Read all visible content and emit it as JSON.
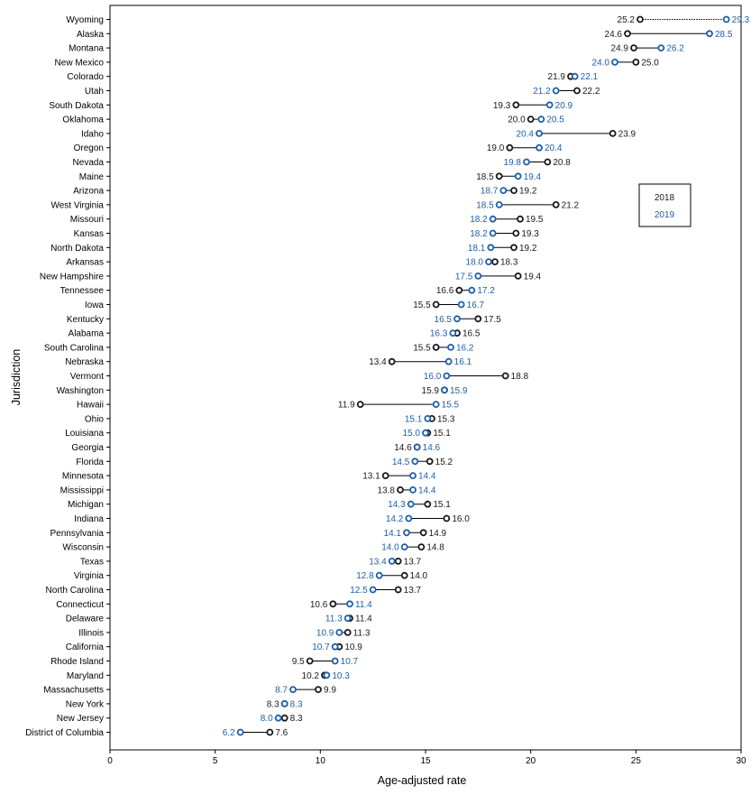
{
  "chart_data": {
    "type": "dumbbell",
    "xlabel": "Age-adjusted rate",
    "ylabel": "Jurisdiction",
    "xlim": [
      0,
      30
    ],
    "xticks": [
      0,
      5,
      10,
      15,
      20,
      25,
      30
    ],
    "grid": false,
    "legend_position": "right",
    "colors": {
      "2018": "#1a1a1a",
      "2019": "#1f5fa8"
    },
    "series": [
      {
        "name": "2018",
        "values": [
          25.2,
          24.6,
          24.9,
          25.0,
          21.9,
          22.2,
          19.3,
          20.0,
          23.9,
          19.0,
          20.8,
          18.5,
          19.2,
          21.2,
          19.5,
          19.3,
          19.2,
          18.3,
          19.4,
          16.6,
          15.5,
          17.5,
          16.5,
          15.5,
          13.4,
          18.8,
          15.9,
          11.9,
          15.3,
          15.1,
          14.6,
          15.2,
          13.1,
          13.8,
          15.1,
          16.0,
          14.9,
          14.8,
          13.7,
          14.0,
          13.7,
          10.6,
          11.4,
          11.3,
          10.9,
          9.5,
          10.2,
          9.9,
          8.3,
          8.3,
          7.6
        ]
      },
      {
        "name": "2019",
        "values": [
          29.3,
          28.5,
          26.2,
          24.0,
          22.1,
          21.2,
          20.9,
          20.5,
          20.4,
          20.4,
          19.8,
          19.4,
          18.7,
          18.5,
          18.2,
          18.2,
          18.1,
          18.0,
          17.5,
          17.2,
          16.7,
          16.5,
          16.3,
          16.2,
          16.1,
          16.0,
          15.9,
          15.5,
          15.1,
          15.0,
          14.6,
          14.5,
          14.4,
          14.4,
          14.3,
          14.2,
          14.1,
          14.0,
          13.4,
          12.8,
          12.5,
          11.4,
          11.3,
          10.9,
          10.7,
          10.7,
          10.3,
          8.7,
          8.3,
          8.0,
          6.2
        ]
      }
    ],
    "categories": [
      "Wyoming",
      "Alaska",
      "Montana",
      "New Mexico",
      "Colorado",
      "Utah",
      "South Dakota",
      "Oklahoma",
      "Idaho",
      "Oregon",
      "Nevada",
      "Maine",
      "Arizona",
      "West Virginia",
      "Missouri",
      "Kansas",
      "North Dakota",
      "Arkansas",
      "New Hampshire",
      "Tennessee",
      "Iowa",
      "Kentucky",
      "Alabama",
      "South Carolina",
      "Nebraska",
      "Vermont",
      "Washington",
      "Hawaii",
      "Ohio",
      "Louisiana",
      "Georgia",
      "Florida",
      "Minnesota",
      "Mississippi",
      "Michigan",
      "Indiana",
      "Pennsylvania",
      "Wisconsin",
      "Texas",
      "Virginia",
      "North Carolina",
      "Connecticut",
      "Delaware",
      "Illinois",
      "California",
      "Rhode Island",
      "Maryland",
      "Massachusetts",
      "New York",
      "New Jersey",
      "District of Columbia"
    ]
  }
}
